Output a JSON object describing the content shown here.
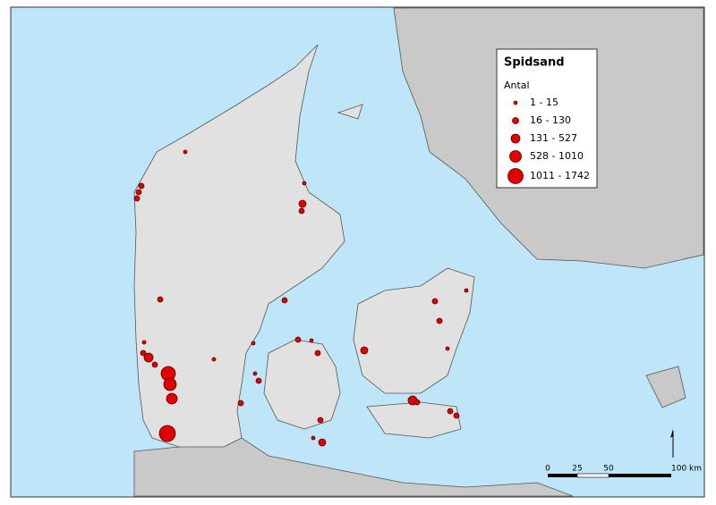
{
  "legend": {
    "title": "Spidsand",
    "subtitle": "Antal",
    "classes": [
      "1 - 15",
      "16 - 130",
      "131 - 527",
      "528 - 1010",
      "1011 - 1742"
    ]
  },
  "scale_bar": {
    "labels": [
      "0",
      "25",
      "50",
      "100 km"
    ]
  }
}
